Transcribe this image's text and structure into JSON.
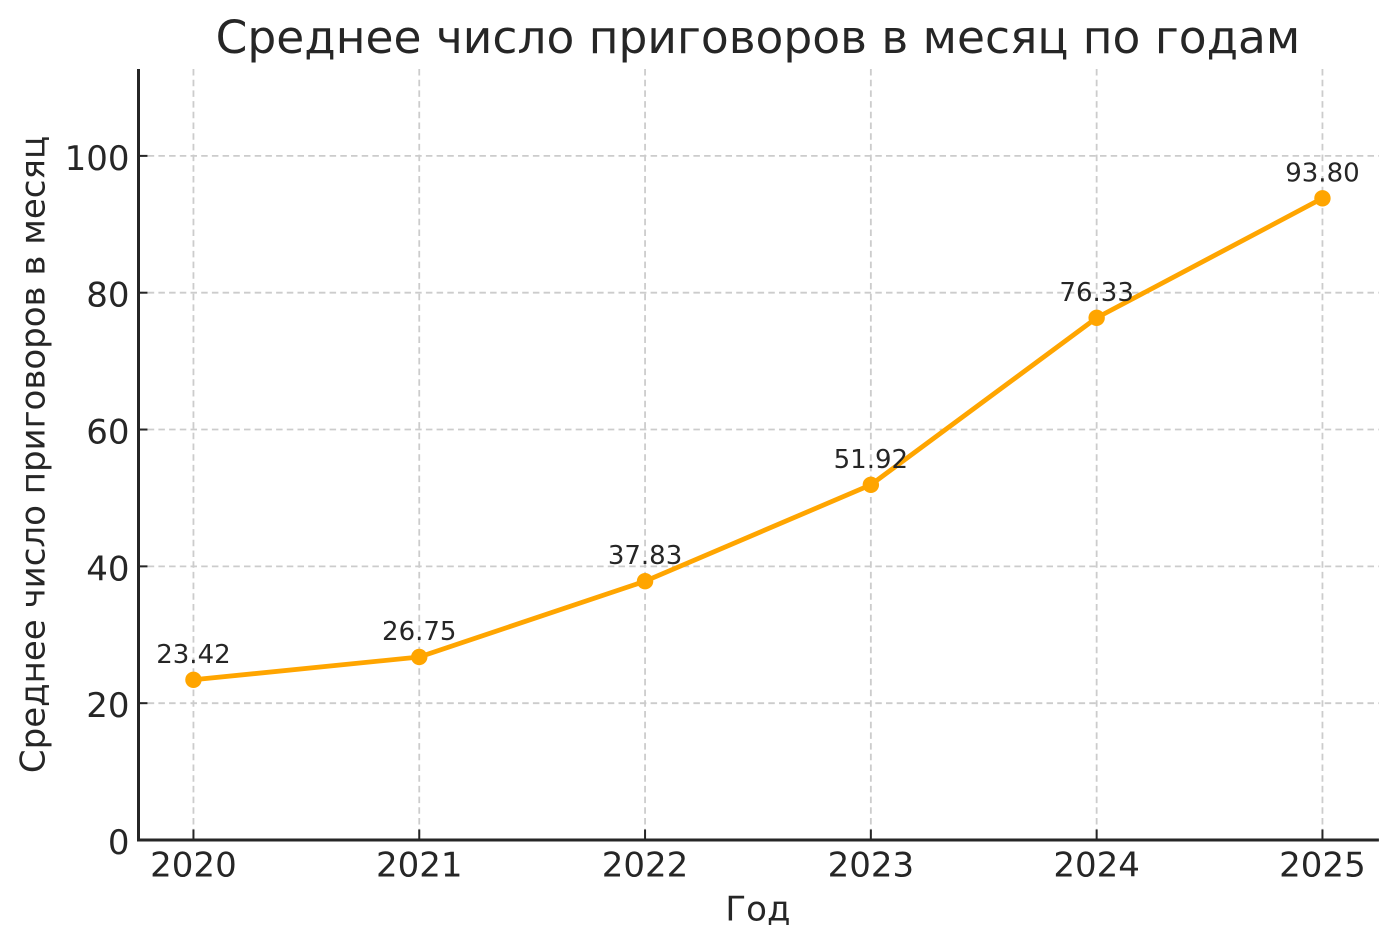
{
  "chart_data": {
    "type": "line",
    "title": "Среднее число приговоров в месяц по годам",
    "xlabel": "Год",
    "ylabel": "Среднее число приговоров в месяц",
    "categories": [
      "2020",
      "2021",
      "2022",
      "2023",
      "2024",
      "2025"
    ],
    "x": [
      2020,
      2021,
      2022,
      2023,
      2024,
      2025
    ],
    "series": [
      {
        "name": "Среднее число приговоров в месяц",
        "values": [
          23.42,
          26.75,
          37.83,
          51.92,
          76.33,
          93.8
        ],
        "point_labels": [
          "23.42",
          "26.75",
          "37.83",
          "51.92",
          "76.33",
          "93.80"
        ]
      }
    ],
    "y_ticks": [
      0,
      20,
      40,
      60,
      80,
      100
    ],
    "y_tick_labels": [
      "0",
      "20",
      "40",
      "60",
      "80",
      "100"
    ],
    "xlim": [
      2019.75,
      2025.25
    ],
    "ylim": [
      0,
      112.7
    ],
    "grid": true,
    "grid_linestyle": "dashed",
    "legend": null,
    "marker": "circle",
    "colors": {
      "line": "#FFA500",
      "marker": "#FFA500",
      "grid": "#cccccc",
      "text": "#262626",
      "spine": "#262626",
      "background": "#ffffff"
    }
  }
}
